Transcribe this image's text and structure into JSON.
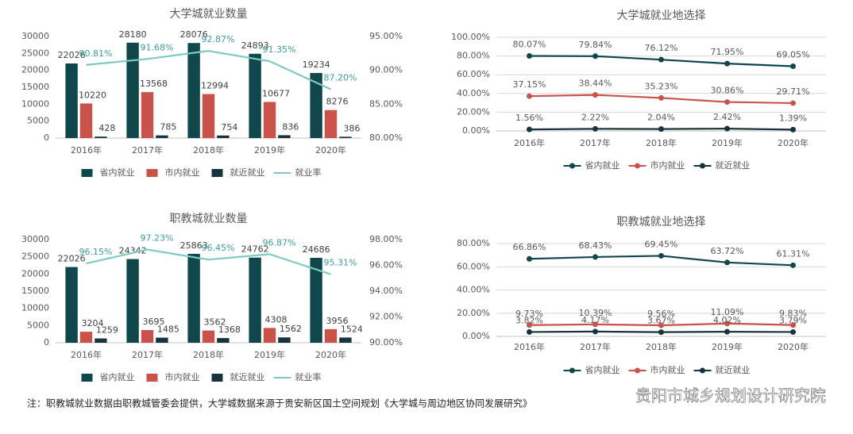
{
  "chart_data": [
    {
      "type": "bar",
      "title": "大学城就业数量",
      "categories": [
        "2016年",
        "2017年",
        "2018年",
        "2019年",
        "2020年"
      ],
      "series": [
        {
          "name": "省内就业",
          "color": "#0f474d",
          "values": [
            22026,
            28180,
            28076,
            24893,
            19234
          ]
        },
        {
          "name": "市内就业",
          "color": "#c9524a",
          "values": [
            10220,
            13568,
            12994,
            10677,
            8276
          ]
        },
        {
          "name": "就近就业",
          "color": "#17343d",
          "values": [
            428,
            785,
            754,
            836,
            386
          ]
        },
        {
          "name": "就业率",
          "color": "#7ccac2",
          "axis": "y2",
          "type": "line",
          "values": [
            90.81,
            91.68,
            92.87,
            91.35,
            87.2
          ],
          "value_labels": [
            "90.81%",
            "91.68%",
            "92.87%",
            "91.35%",
            "87.20%"
          ]
        }
      ],
      "ylim": [
        0,
        30000
      ],
      "yticks": [
        0,
        5000,
        10000,
        15000,
        20000,
        25000,
        30000
      ],
      "y2lim": [
        80,
        95
      ],
      "y2ticks": [
        {
          "value": 80,
          "label": "80.00%"
        },
        {
          "value": 85,
          "label": "85.00%"
        },
        {
          "value": 90,
          "label": "90.00%"
        },
        {
          "value": 95,
          "label": "95.00%"
        }
      ],
      "grid": false,
      "legend": "bottom"
    },
    {
      "type": "line",
      "title": "大学城就业地选择",
      "categories": [
        "2016年",
        "2017年",
        "2018年",
        "2019年",
        "2020年"
      ],
      "series": [
        {
          "name": "省内就业",
          "color": "#0f474d",
          "values": [
            80.07,
            79.84,
            76.12,
            71.95,
            69.05
          ],
          "value_labels": [
            "80.07%",
            "79.84%",
            "76.12%",
            "71.95%",
            "69.05%"
          ]
        },
        {
          "name": "市内就业",
          "color": "#c9524a",
          "values": [
            37.15,
            38.44,
            35.23,
            30.86,
            29.71
          ],
          "value_labels": [
            "37.15%",
            "38.44%",
            "35.23%",
            "30.86%",
            "29.71%"
          ]
        },
        {
          "name": "就近就业",
          "color": "#17343d",
          "values": [
            1.56,
            2.22,
            2.04,
            2.42,
            1.39
          ],
          "value_labels": [
            "1.56%",
            "2.22%",
            "2.04%",
            "2.42%",
            "1.39%"
          ]
        }
      ],
      "ylim": [
        0,
        100
      ],
      "yticks": [
        {
          "value": 0,
          "label": "0.00%"
        },
        {
          "value": 20,
          "label": "20.00%"
        },
        {
          "value": 40,
          "label": "40.00%"
        },
        {
          "value": 60,
          "label": "60.00%"
        },
        {
          "value": 80,
          "label": "80.00%"
        },
        {
          "value": 100,
          "label": "100.00%"
        }
      ],
      "grid": true,
      "legend": "bottom"
    },
    {
      "type": "bar",
      "title": "职教城就业数量",
      "categories": [
        "2016年",
        "2017年",
        "2018年",
        "2019年",
        "2020年"
      ],
      "series": [
        {
          "name": "省内就业",
          "color": "#0f474d",
          "values": [
            22026,
            24342,
            25863,
            24762,
            24686
          ]
        },
        {
          "name": "市内就业",
          "color": "#c9524a",
          "values": [
            3204,
            3695,
            3562,
            4308,
            3956
          ]
        },
        {
          "name": "就近就业",
          "color": "#17343d",
          "values": [
            1259,
            1485,
            1368,
            1562,
            1524
          ]
        },
        {
          "name": "就业率",
          "color": "#7ccac2",
          "axis": "y2",
          "type": "line",
          "values": [
            96.15,
            97.23,
            96.45,
            96.87,
            95.31
          ],
          "value_labels": [
            "96.15%",
            "97.23%",
            "96.45%",
            "96.87%",
            "95.31%"
          ]
        }
      ],
      "ylim": [
        0,
        30000
      ],
      "yticks": [
        0,
        5000,
        10000,
        15000,
        20000,
        25000,
        30000
      ],
      "y2lim": [
        90,
        98
      ],
      "y2ticks": [
        {
          "value": 90,
          "label": "90.00%"
        },
        {
          "value": 92,
          "label": "92.00%"
        },
        {
          "value": 94,
          "label": "94.00%"
        },
        {
          "value": 96,
          "label": "96.00%"
        },
        {
          "value": 98,
          "label": "98.00%"
        }
      ],
      "grid": false,
      "legend": "bottom"
    },
    {
      "type": "line",
      "title": "职教城就业地选择",
      "categories": [
        "2016年",
        "2017年",
        "2018年",
        "2019年",
        "2020年"
      ],
      "series": [
        {
          "name": "省内就业",
          "color": "#0f474d",
          "values": [
            66.86,
            68.43,
            69.45,
            63.72,
            61.31
          ],
          "value_labels": [
            "66.86%",
            "68.43%",
            "69.45%",
            "63.72%",
            "61.31%"
          ]
        },
        {
          "name": "市内就业",
          "color": "#c9524a",
          "values": [
            9.73,
            10.39,
            9.56,
            11.09,
            9.83
          ],
          "value_labels": [
            "9.73%",
            "10.39%",
            "9.56%",
            "11.09%",
            "9.83%"
          ]
        },
        {
          "name": "就近就业",
          "color": "#17343d",
          "values": [
            3.82,
            4.17,
            3.67,
            4.02,
            3.79
          ],
          "value_labels": [
            "3.82%",
            "4.17%",
            "3.67%",
            "4.02%",
            "3.79%"
          ]
        }
      ],
      "ylim": [
        0,
        80
      ],
      "yticks": [
        {
          "value": 0,
          "label": "0.00%"
        },
        {
          "value": 20,
          "label": "20.00%"
        },
        {
          "value": 40,
          "label": "40.00%"
        },
        {
          "value": 60,
          "label": "60.00%"
        },
        {
          "value": 80,
          "label": "80.00%"
        }
      ],
      "grid": true,
      "legend": "bottom"
    }
  ],
  "footnote": "注：职教城就业数据由职教城管委会提供，大学城数据来源于贵安新区国土空间规划《大学城与周边地区协同发展研究》",
  "watermark": "贵阳市城乡规划设计研究院"
}
